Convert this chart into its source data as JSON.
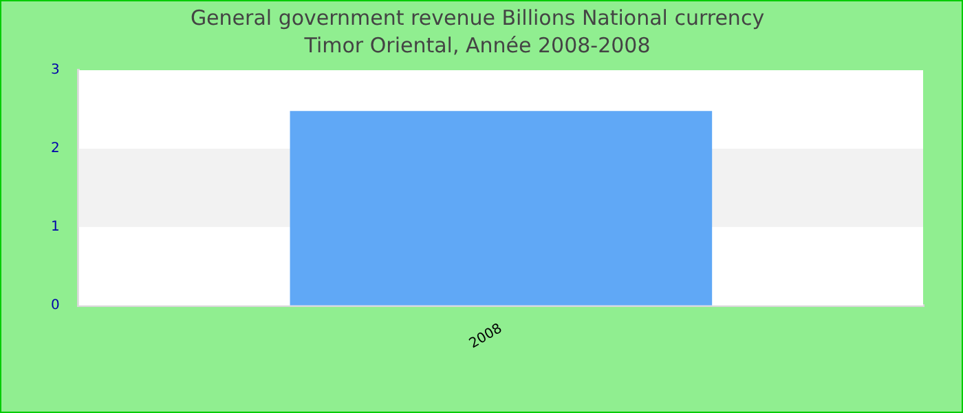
{
  "chart_data": {
    "type": "bar",
    "title": "General government revenue Billions National currency",
    "subtitle": "Timor Oriental, Année 2008-2008",
    "categories": [
      "2008"
    ],
    "values": [
      2.48
    ],
    "color": "#60a8f6",
    "ylim": [
      0,
      3
    ],
    "yticks": [
      0,
      1,
      2,
      3
    ],
    "bands": [
      {
        "axis": "y",
        "from": 1,
        "to": 2,
        "color": "#f2f2f2"
      }
    ]
  }
}
